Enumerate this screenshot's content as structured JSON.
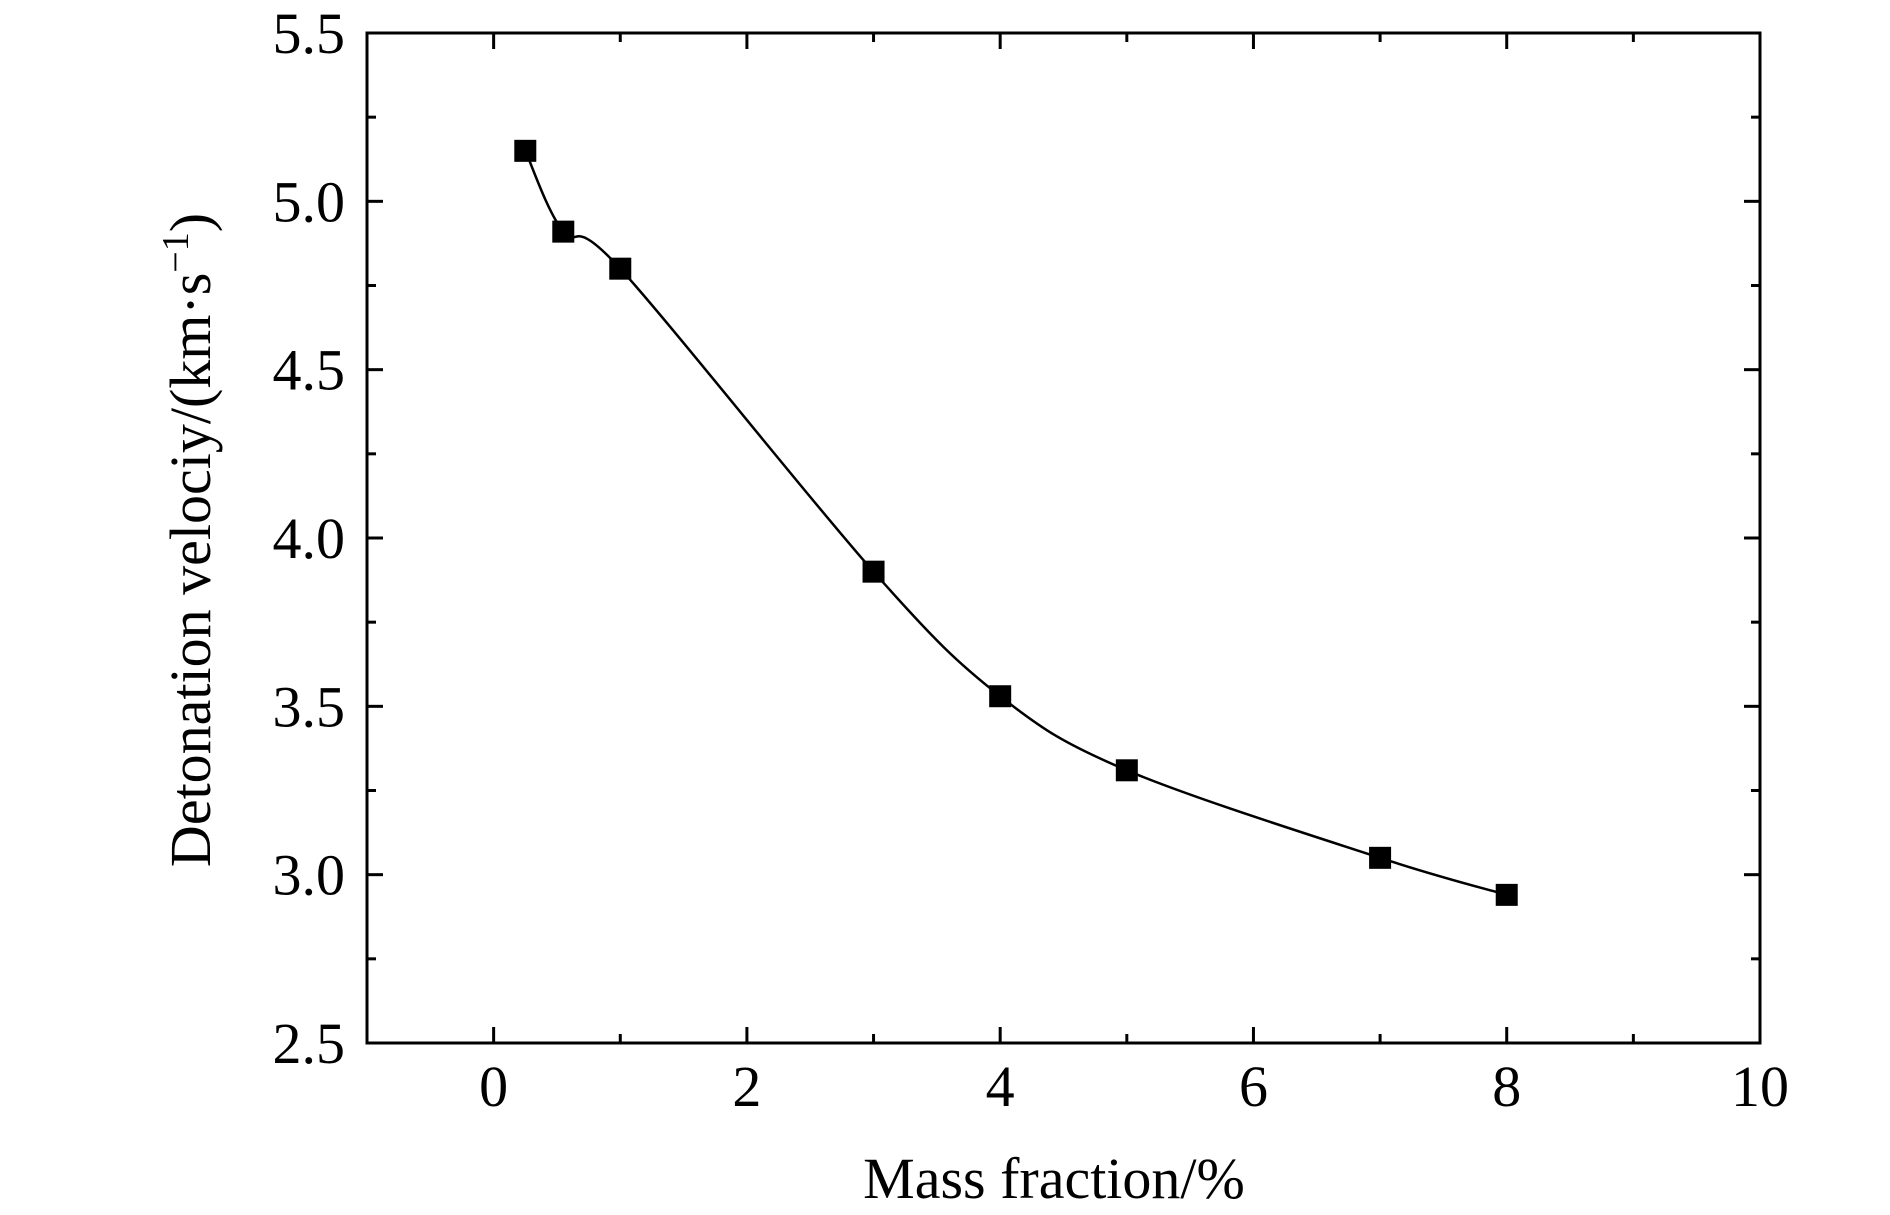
{
  "chart_data": {
    "type": "line",
    "xlabel": "Mass fraction/%",
    "ylabel": {
      "text": "Detonation velociy/(km·s",
      "superscript": "−1",
      "suffix": ")"
    },
    "xlim": [
      -1,
      10
    ],
    "ylim": [
      2.5,
      5.5
    ],
    "x_ticks": [
      0,
      2,
      4,
      6,
      8,
      10
    ],
    "x_tick_labels": [
      "0",
      "2",
      "4",
      "6",
      "8",
      "10"
    ],
    "x_minor_ticks": [
      1,
      3,
      5,
      7,
      9
    ],
    "y_ticks": [
      2.5,
      3.0,
      3.5,
      4.0,
      4.5,
      5.0,
      5.5
    ],
    "y_tick_labels": [
      "2.5",
      "3.0",
      "3.5",
      "4.0",
      "4.5",
      "5.0",
      "5.5"
    ],
    "y_minor_ticks": [
      2.75,
      3.25,
      3.75,
      4.25,
      4.75,
      5.25
    ],
    "grid": false,
    "series": [
      {
        "marker": "square",
        "color": "#000000",
        "x": [
          0.25,
          0.55,
          1.0,
          3.0,
          4.0,
          5.0,
          7.0,
          8.0
        ],
        "y": [
          5.15,
          4.91,
          4.8,
          3.9,
          3.53,
          3.31,
          3.05,
          2.94
        ]
      }
    ]
  }
}
